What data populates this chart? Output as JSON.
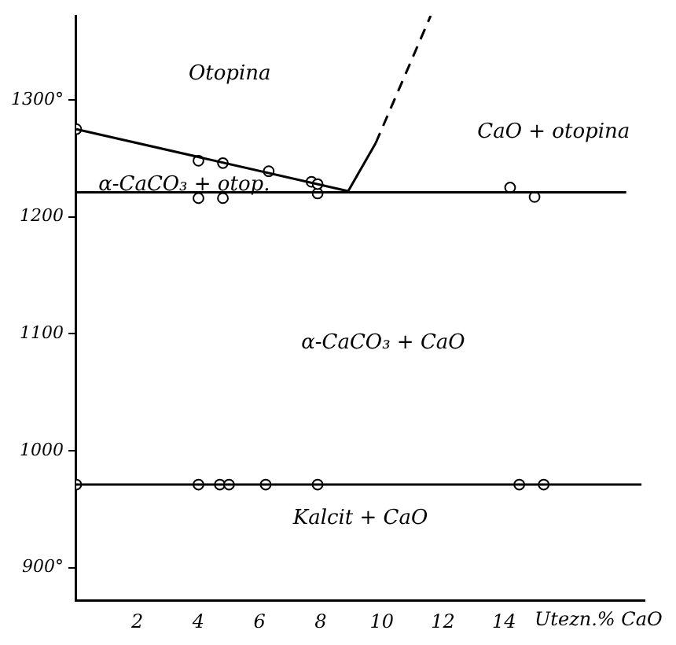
{
  "chart_data": {
    "type": "line",
    "xlabel": "Utezn.% CaO",
    "grid": false,
    "legend": false,
    "xlim": [
      0,
      18.6
    ],
    "ylim": [
      872,
      1372
    ],
    "xticks": [
      2,
      4,
      6,
      8,
      10,
      12,
      14
    ],
    "yticks": [
      {
        "value": 900,
        "label": "900°"
      },
      1000,
      1100,
      1200,
      {
        "value": 1300,
        "label": "1300°"
      }
    ],
    "series": [
      {
        "color": "#000000",
        "marker": "none",
        "line_style": "solid",
        "x": [
          0,
          8.9
        ],
        "values": [
          1275,
          1222
        ]
      },
      {
        "color": "#000000",
        "marker": "none",
        "line_style": "solid",
        "x": [
          0,
          18.0
        ],
        "values": [
          1221,
          1221
        ]
      },
      {
        "color": "#000000",
        "marker": "none",
        "line_style": "solid",
        "x": [
          8.9,
          9.8
        ],
        "values": [
          1222,
          1263
        ]
      },
      {
        "color": "#000000",
        "marker": "none",
        "line_style": "dashed",
        "x": [
          9.8,
          11.6
        ],
        "values": [
          1263,
          1372
        ]
      },
      {
        "color": "#000000",
        "marker": "none",
        "line_style": "solid",
        "x": [
          0,
          18.5
        ],
        "values": [
          971,
          971
        ]
      },
      {
        "type": "scatter",
        "color": "#000000",
        "marker": "circle",
        "x": [
          0,
          4.0,
          4.8,
          6.3,
          7.7,
          7.9
        ],
        "values": [
          1275,
          1248,
          1246,
          1239,
          1230,
          1228
        ]
      },
      {
        "type": "scatter",
        "color": "#000000",
        "marker": "circle",
        "x": [
          4.0,
          4.8,
          7.9,
          14.2,
          15.0
        ],
        "values": [
          1216,
          1216,
          1220,
          1225,
          1217
        ]
      },
      {
        "type": "scatter",
        "color": "#000000",
        "marker": "circle",
        "x": [
          0,
          4.0,
          4.7,
          5.0,
          6.2,
          7.9,
          14.5,
          15.3
        ],
        "values": [
          971,
          971,
          971,
          971,
          971,
          971,
          971,
          971
        ]
      }
    ],
    "annotations": [
      "Otopina",
      "CaO + otopina",
      "α-CaCO₃ + otop.",
      "α-CaCO₃ + CaO",
      "Kalcit + CaO"
    ]
  }
}
